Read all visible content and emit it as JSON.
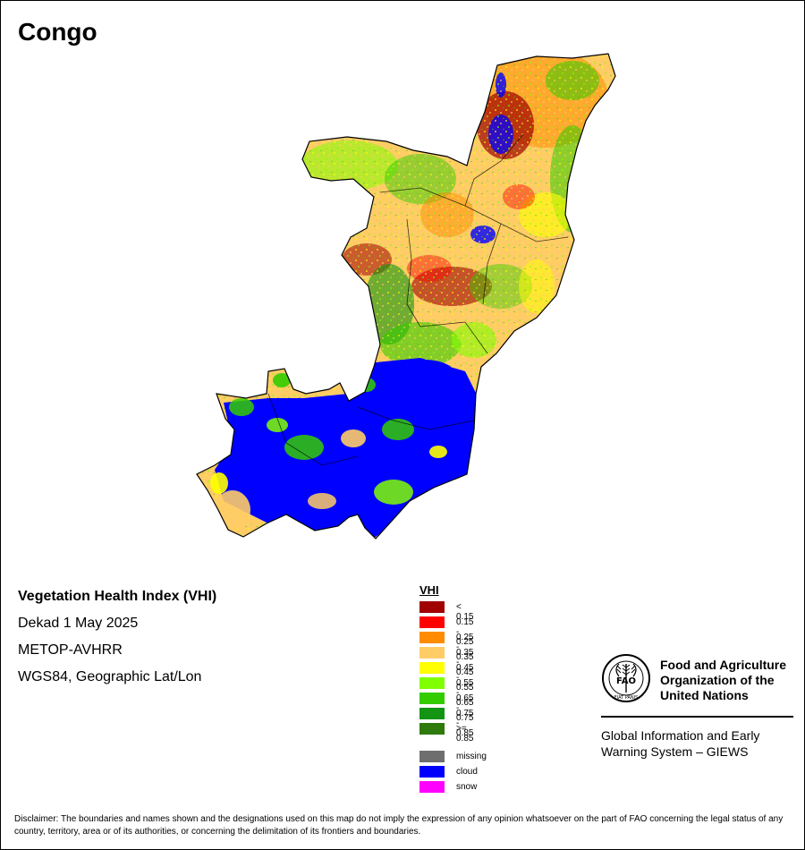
{
  "map": {
    "title": "Congo"
  },
  "info": {
    "index_name": "Vegetation Health Index (VHI)",
    "period": "Dekad 1 May 2025",
    "sensor": "METOP-AVHRR",
    "projection": "WGS84, Geographic Lat/Lon"
  },
  "legend": {
    "title": "VHI",
    "classes": [
      {
        "label": "< 0.15",
        "color": "#a00000"
      },
      {
        "label": "0.15 - 0.25",
        "color": "#ff0000"
      },
      {
        "label": "0.25 - 0.35",
        "color": "#ff8c00"
      },
      {
        "label": "0.35 - 0.45",
        "color": "#ffcc66"
      },
      {
        "label": "0.45 - 0.55",
        "color": "#ffff00"
      },
      {
        "label": "0.55 - 0.65",
        "color": "#80ff00"
      },
      {
        "label": "0.65 - 0.75",
        "color": "#33cc00"
      },
      {
        "label": "0.75 - 0.85",
        "color": "#139413"
      },
      {
        "label": ">= 0.85",
        "color": "#2e7a0a"
      }
    ],
    "other": [
      {
        "label": "missing",
        "color": "#6e6e6e"
      },
      {
        "label": "cloud",
        "color": "#0000ff"
      },
      {
        "label": "snow",
        "color": "#ff00ff"
      }
    ]
  },
  "organization": {
    "logo_letters": "FAO",
    "logo_motto": "FIAT PANIS",
    "name_lines": [
      "Food and Agriculture",
      "Organization of the",
      "United Nations"
    ],
    "program_lines": [
      "Global Information and Early",
      "Warning System – GIEWS"
    ]
  },
  "disclaimer": "Disclaimer: The boundaries and names shown and the designations used on this map do not imply the expression of any opinion whatsoever on the part of FAO concerning the legal status of any country, territory, area or of its authorities, or concerning the delimitation of its frontiers and boundaries."
}
